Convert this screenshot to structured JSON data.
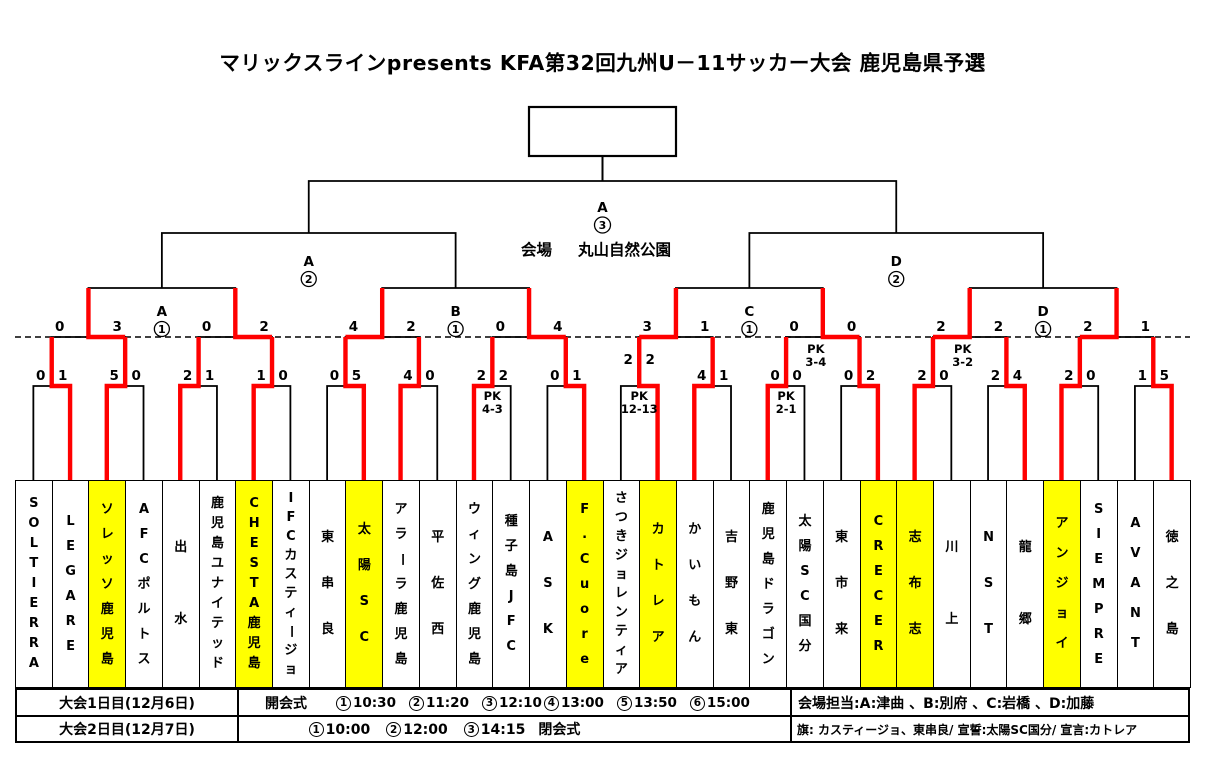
{
  "title": "マリックスラインpresents KFA第32回九州U－11サッカー大会 鹿児島県予選",
  "venue": {
    "label": "会場",
    "name": "丸山自然公園"
  },
  "colors": {
    "winner_path": "#ff0000",
    "qualified_team": "#ffff00",
    "line": "#000000"
  },
  "pk_label": "PK",
  "teams": [
    {
      "name": "SOLTIERRA",
      "advanced": false
    },
    {
      "name": "LEGARE",
      "advanced": false
    },
    {
      "name": "ソレッソ鹿児島",
      "advanced": true
    },
    {
      "name": "AFCポルトス",
      "advanced": false
    },
    {
      "name": "出水",
      "advanced": false
    },
    {
      "name": "鹿児島ユナイテッド",
      "advanced": false
    },
    {
      "name": "CHESTA鹿児島",
      "advanced": true
    },
    {
      "name": "IFCカスティージョ",
      "advanced": false
    },
    {
      "name": "東串良",
      "advanced": false
    },
    {
      "name": "太陽SC",
      "advanced": true
    },
    {
      "name": "アラーラ鹿児島",
      "advanced": false
    },
    {
      "name": "平佐西",
      "advanced": false
    },
    {
      "name": "ウィング鹿児島",
      "advanced": false
    },
    {
      "name": "種子島JFC",
      "advanced": false
    },
    {
      "name": "ASK",
      "advanced": false
    },
    {
      "name": "F.Cuore",
      "advanced": true
    },
    {
      "name": "さつきジョレンティア",
      "advanced": false
    },
    {
      "name": "カトレア",
      "advanced": true
    },
    {
      "name": "かいもん",
      "advanced": false
    },
    {
      "name": "吉野東",
      "advanced": false
    },
    {
      "name": "鹿児島ドラゴン",
      "advanced": false
    },
    {
      "name": "太陽SC国分",
      "advanced": false
    },
    {
      "name": "東市来",
      "advanced": false
    },
    {
      "name": "CRECER",
      "advanced": true
    },
    {
      "name": "志布志",
      "advanced": true
    },
    {
      "name": "川上",
      "advanced": false
    },
    {
      "name": "NST",
      "advanced": false
    },
    {
      "name": "龍郷",
      "advanced": false
    },
    {
      "name": "アンジョイ",
      "advanced": true
    },
    {
      "name": "SIEMPRE",
      "advanced": false
    },
    {
      "name": "AVANT",
      "advanced": false
    },
    {
      "name": "徳之島",
      "advanced": false
    }
  ],
  "round1": [
    {
      "score": [
        "0",
        "1"
      ],
      "winner": 1,
      "pk": null,
      "raised": false
    },
    {
      "score": [
        "5",
        "0"
      ],
      "winner": 0,
      "pk": null,
      "raised": false
    },
    {
      "score": [
        "2",
        "1"
      ],
      "winner": 0,
      "pk": null,
      "raised": false
    },
    {
      "score": [
        "1",
        "0"
      ],
      "winner": 0,
      "pk": null,
      "raised": false
    },
    {
      "score": [
        "0",
        "5"
      ],
      "winner": 1,
      "pk": null,
      "raised": false
    },
    {
      "score": [
        "4",
        "0"
      ],
      "winner": 0,
      "pk": null,
      "raised": false
    },
    {
      "score": [
        "2",
        "2"
      ],
      "winner": 0,
      "pk": "4-3",
      "raised": false
    },
    {
      "score": [
        "0",
        "1"
      ],
      "winner": 1,
      "pk": null,
      "raised": false
    },
    {
      "score": [
        "2",
        "2"
      ],
      "winner": 1,
      "pk": "12-13",
      "raised": true
    },
    {
      "score": [
        "4",
        "1"
      ],
      "winner": 0,
      "pk": null,
      "raised": false
    },
    {
      "score": [
        "0",
        "0"
      ],
      "winner": 0,
      "pk": "2-1",
      "raised": false
    },
    {
      "score": [
        "0",
        "2"
      ],
      "winner": 1,
      "pk": null,
      "raised": false
    },
    {
      "score": [
        "2",
        "0"
      ],
      "winner": 0,
      "pk": null,
      "raised": false
    },
    {
      "score": [
        "2",
        "4"
      ],
      "winner": 1,
      "pk": null,
      "raised": false
    },
    {
      "score": [
        "2",
        "0"
      ],
      "winner": 0,
      "pk": null,
      "raised": false
    },
    {
      "score": [
        "1",
        "5"
      ],
      "winner": 1,
      "pk": null,
      "raised": false
    }
  ],
  "round2": [
    {
      "score": [
        "0",
        "3"
      ],
      "winner": 1,
      "pk": null
    },
    {
      "score": [
        "0",
        "2"
      ],
      "winner": 1,
      "pk": null
    },
    {
      "score": [
        "4",
        "2"
      ],
      "winner": 0,
      "pk": null
    },
    {
      "score": [
        "0",
        "4"
      ],
      "winner": 1,
      "pk": null
    },
    {
      "score": [
        "3",
        "1"
      ],
      "winner": 0,
      "pk": null
    },
    {
      "score": [
        "0",
        "0"
      ],
      "winner": 1,
      "pk": "3-4"
    },
    {
      "score": [
        "2",
        "2"
      ],
      "winner": 0,
      "pk": "3-2"
    },
    {
      "score": [
        "2",
        "1"
      ],
      "winner": 0,
      "pk": null
    }
  ],
  "match_labels": {
    "quarterfinals": [
      {
        "letter": "A",
        "num": "1"
      },
      {
        "letter": "B",
        "num": "1"
      },
      {
        "letter": "C",
        "num": "1"
      },
      {
        "letter": "D",
        "num": "1"
      }
    ],
    "semifinals": [
      {
        "letter": "A",
        "num": "2"
      },
      {
        "letter": "D",
        "num": "2"
      }
    ],
    "final": {
      "letter": "A",
      "num": "3"
    }
  },
  "schedule": {
    "day1_label": "大会1日目(12月6日)",
    "day1_ceremony": "開会式",
    "day1_times": [
      "10:30",
      "11:20",
      "12:10",
      "13:00",
      "13:50",
      "15:00"
    ],
    "day2_label": "大会2日目(12月7日)",
    "day2_times": [
      "10:00",
      "12:00",
      "14:15"
    ],
    "day2_ceremony": "閉会式",
    "venue_staff": "会場担当:A:津曲 、B:別府 、C:岩橋 、D:加藤",
    "flag_note": "旗: カスティージョ、東串良/ 宣誓:太陽SC国分/ 宣言:カトレア"
  }
}
